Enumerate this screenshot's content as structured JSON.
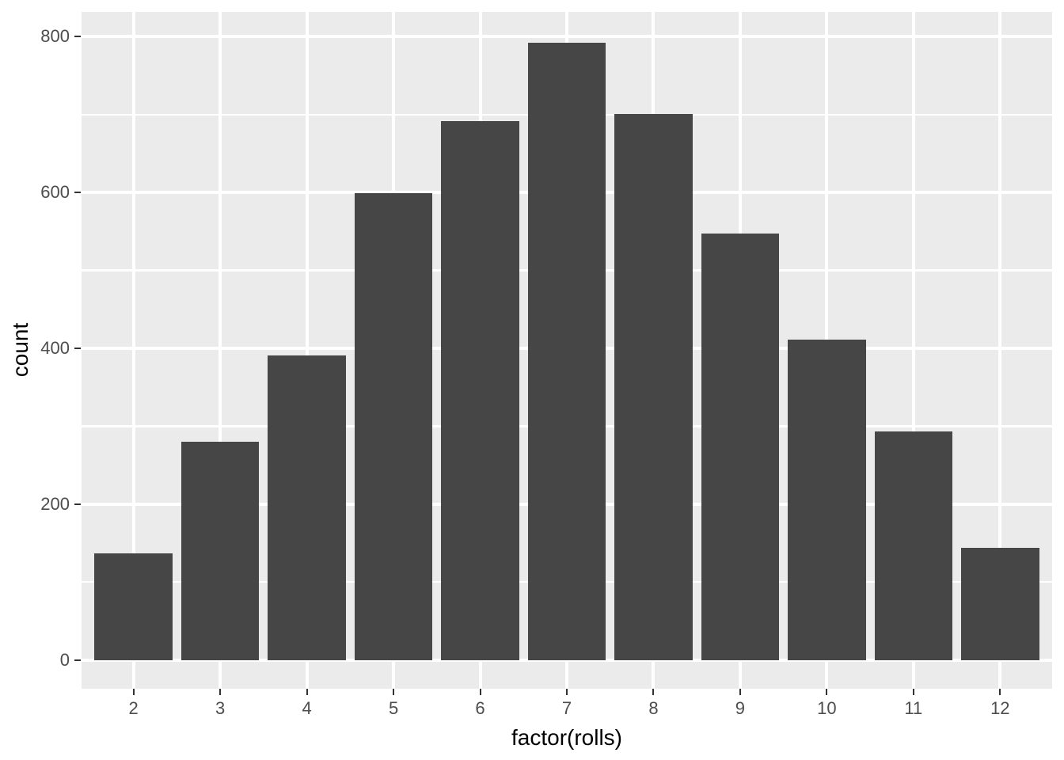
{
  "chart_data": {
    "type": "bar",
    "title": "",
    "xlabel": "factor(rolls)",
    "ylabel": "count",
    "categories": [
      "2",
      "3",
      "4",
      "5",
      "6",
      "7",
      "8",
      "9",
      "10",
      "11",
      "12"
    ],
    "values": [
      137,
      280,
      391,
      599,
      692,
      792,
      701,
      547,
      411,
      293,
      144
    ],
    "ytick_labels": [
      "0",
      "200",
      "400",
      "600",
      "800"
    ],
    "yticks": [
      0,
      200,
      400,
      600,
      800
    ],
    "yminor": [
      100,
      300,
      500,
      700
    ],
    "ylim": [
      0,
      800
    ],
    "panel_ylim": [
      -37,
      832
    ],
    "grid": "on",
    "legend": "none",
    "theme": "ggplot2-grey",
    "colors": {
      "bar_fill": "#464646",
      "panel_bg": "#EBEBEB",
      "grid": "#FFFFFF",
      "tick_mark": "#333333",
      "tick_label": "#4D4D4D",
      "axis_title": "#000000",
      "background": "#FFFFFF"
    }
  }
}
